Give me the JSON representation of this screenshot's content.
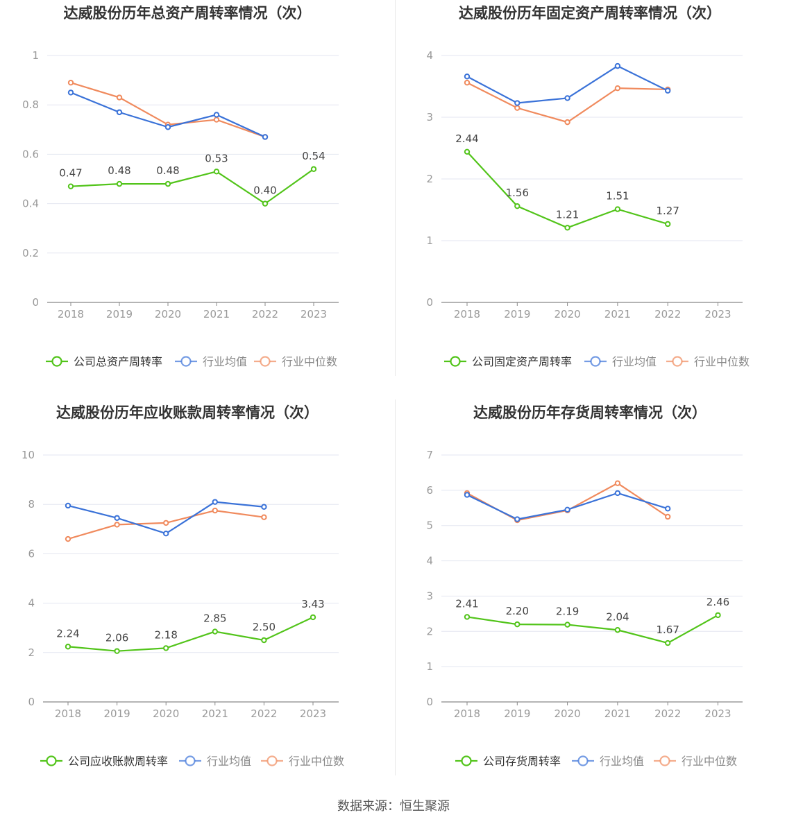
{
  "source_text": "数据来源：恒生聚源",
  "colors": {
    "company": "#52c41a",
    "avg": "#3a72d8",
    "median": "#f08a5d",
    "grid": "#e3e6f0",
    "axis": "#666666",
    "label": "#999999"
  },
  "chart_data": [
    {
      "type": "line",
      "title": "达威股份历年总资产周转率情况（次）",
      "categories": [
        "2018",
        "2019",
        "2020",
        "2021",
        "2022",
        "2023"
      ],
      "yticks": [
        "0",
        "0.2",
        "0.4",
        "0.6",
        "0.8",
        "1"
      ],
      "ylim": [
        0,
        1
      ],
      "series": [
        {
          "name": "公司总资产周转率",
          "key": "company",
          "values": [
            0.47,
            0.48,
            0.48,
            0.53,
            0.4,
            0.54
          ],
          "labels": [
            "0.47",
            "0.48",
            "0.48",
            "0.53",
            "0.40",
            "0.54"
          ]
        },
        {
          "name": "行业均值",
          "key": "avg",
          "values": [
            0.85,
            0.77,
            0.71,
            0.76,
            0.67,
            null
          ]
        },
        {
          "name": "行业中位数",
          "key": "median",
          "values": [
            0.89,
            0.83,
            0.72,
            0.74,
            0.67,
            null
          ]
        }
      ]
    },
    {
      "type": "line",
      "title": "达威股份历年固定资产周转率情况（次）",
      "categories": [
        "2018",
        "2019",
        "2020",
        "2021",
        "2022",
        "2023"
      ],
      "yticks": [
        "0",
        "1",
        "2",
        "3",
        "4"
      ],
      "ylim": [
        0,
        4
      ],
      "series": [
        {
          "name": "公司固定资产周转率",
          "key": "company",
          "values": [
            2.44,
            1.56,
            1.21,
            1.51,
            1.27,
            null
          ],
          "labels": [
            "2.44",
            "1.56",
            "1.21",
            "1.51",
            "1.27",
            ""
          ]
        },
        {
          "name": "行业均值",
          "key": "avg",
          "values": [
            3.66,
            3.23,
            3.31,
            3.83,
            3.43,
            null
          ]
        },
        {
          "name": "行业中位数",
          "key": "median",
          "values": [
            3.56,
            3.15,
            2.92,
            3.47,
            3.45,
            null
          ]
        }
      ]
    },
    {
      "type": "line",
      "title": "达威股份历年应收账款周转率情况（次）",
      "categories": [
        "2018",
        "2019",
        "2020",
        "2021",
        "2022",
        "2023"
      ],
      "yticks": [
        "0",
        "2",
        "4",
        "6",
        "8",
        "10"
      ],
      "ylim": [
        0,
        10
      ],
      "series": [
        {
          "name": "公司应收账款周转率",
          "key": "company",
          "values": [
            2.24,
            2.06,
            2.18,
            2.85,
            2.5,
            3.43
          ],
          "labels": [
            "2.24",
            "2.06",
            "2.18",
            "2.85",
            "2.50",
            "3.43"
          ]
        },
        {
          "name": "行业均值",
          "key": "avg",
          "values": [
            7.95,
            7.45,
            6.82,
            8.1,
            7.9,
            null
          ]
        },
        {
          "name": "行业中位数",
          "key": "median",
          "values": [
            6.6,
            7.18,
            7.25,
            7.75,
            7.48,
            null
          ]
        }
      ]
    },
    {
      "type": "line",
      "title": "达威股份历年存货周转率情况（次）",
      "categories": [
        "2018",
        "2019",
        "2020",
        "2021",
        "2022",
        "2023"
      ],
      "yticks": [
        "0",
        "1",
        "2",
        "3",
        "4",
        "5",
        "6",
        "7"
      ],
      "ylim": [
        0,
        7
      ],
      "series": [
        {
          "name": "公司存货周转率",
          "key": "company",
          "values": [
            2.41,
            2.2,
            2.19,
            2.04,
            1.67,
            2.46
          ],
          "labels": [
            "2.41",
            "2.20",
            "2.19",
            "2.04",
            "1.67",
            "2.46"
          ]
        },
        {
          "name": "行业均值",
          "key": "avg",
          "values": [
            5.87,
            5.18,
            5.45,
            5.92,
            5.48,
            null
          ]
        },
        {
          "name": "行业中位数",
          "key": "median",
          "values": [
            5.92,
            5.15,
            5.43,
            6.2,
            5.25,
            null
          ]
        }
      ]
    }
  ]
}
